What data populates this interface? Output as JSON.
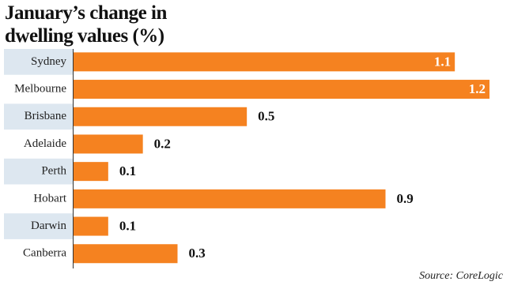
{
  "chart_data": {
    "type": "bar",
    "orientation": "horizontal",
    "title": "January’s change in dwelling values (%)",
    "categories": [
      "Sydney",
      "Melbourne",
      "Brisbane",
      "Adelaide",
      "Perth",
      "Hobart",
      "Darwin",
      "Canberra"
    ],
    "values": [
      1.1,
      1.2,
      0.5,
      0.2,
      0.1,
      0.9,
      0.1,
      0.3
    ],
    "color": "#f58220",
    "xlim": [
      0,
      1.2
    ],
    "source": "Source: CoreLogic"
  }
}
